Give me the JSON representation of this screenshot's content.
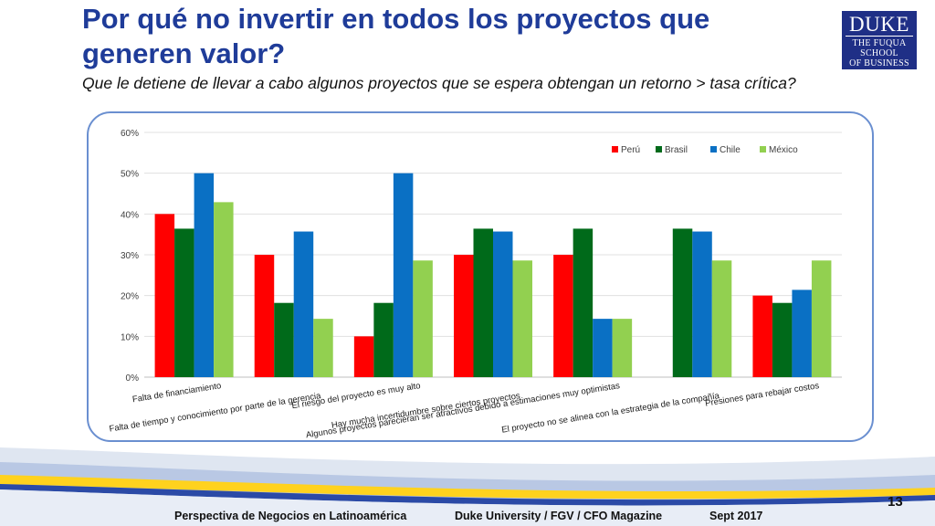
{
  "slide": {
    "title": "Por qué no invertir en todos los proyectos que generen valor?",
    "subtitle": "Que le detiene de llevar a cabo algunos proyectos que se espera obtengan un retorno > tasa crítica?",
    "logo": {
      "line1": "DUKE",
      "line2": "THE FUQUA",
      "line3": "SCHOOL",
      "line4": "OF BUSINESS"
    },
    "page_number": "13",
    "footer": {
      "left": "Perspectiva de Negocios en Latinoamérica",
      "center": "Duke University / FGV / CFO Magazine",
      "right": "Sept 2017"
    }
  },
  "chart_data": {
    "type": "bar",
    "categories": [
      "Falta de financiamiento",
      "Falta de tiempo y conocimiento por parte de la gerencia",
      "El riesgo del proyecto es muy alto",
      "Hay mucha incertidumbre sobre ciertos proyectos",
      "Algunos proyectos parecieran ser atractivos debido a estimaciones muy optimistas",
      "El proyecto no se alinea con la estrategia de la compañía",
      "Presiones para rebajar costos"
    ],
    "series": [
      {
        "name": "Perú",
        "color": "#ff0000",
        "values": [
          40,
          30,
          10,
          30,
          30,
          0,
          20
        ]
      },
      {
        "name": "Brasil",
        "color": "#006a1a",
        "values": [
          36.4,
          18.2,
          18.2,
          36.4,
          36.4,
          36.4,
          18.2
        ]
      },
      {
        "name": "Chile",
        "color": "#0a70c4",
        "values": [
          50,
          35.7,
          50,
          35.7,
          14.3,
          35.7,
          21.4
        ]
      },
      {
        "name": "México",
        "color": "#92d050",
        "values": [
          42.9,
          14.3,
          28.6,
          28.6,
          14.3,
          28.6,
          28.6
        ]
      }
    ],
    "ylim": [
      0,
      60
    ],
    "yticks": [
      "0%",
      "10%",
      "20%",
      "30%",
      "40%",
      "50%",
      "60%"
    ],
    "grid": true,
    "legend": "top-right"
  }
}
